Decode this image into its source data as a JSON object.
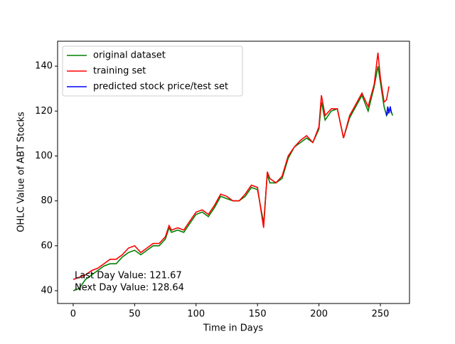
{
  "chart_data": {
    "type": "line",
    "xlabel": "Time in Days",
    "ylabel": "OHLC Value of ABT Stocks",
    "annotations": [
      "Last Day Value: 121.67",
      "Next Day Value: 128.64"
    ],
    "xlim": [
      -12.7,
      273.7
    ],
    "ylim": [
      34.3,
      151.1
    ],
    "xticks": [
      0,
      50,
      100,
      150,
      200,
      250
    ],
    "yticks": [
      40,
      60,
      80,
      100,
      120,
      140
    ],
    "legend": "upper left",
    "series": [
      {
        "name": "original dataset",
        "color": "#008000",
        "x": [
          0,
          5,
          10,
          15,
          20,
          25,
          30,
          35,
          40,
          45,
          50,
          55,
          60,
          65,
          70,
          75,
          78,
          80,
          85,
          90,
          95,
          100,
          105,
          110,
          115,
          120,
          125,
          130,
          135,
          140,
          145,
          150,
          155,
          158,
          160,
          165,
          170,
          175,
          180,
          185,
          190,
          195,
          200,
          202,
          205,
          210,
          215,
          220,
          225,
          230,
          235,
          240,
          245,
          248,
          250,
          253,
          255,
          258,
          260
        ],
        "values": [
          40,
          41,
          45,
          47,
          49,
          51,
          52,
          52,
          55,
          57,
          58,
          56,
          58,
          60,
          60,
          63,
          68,
          66,
          67,
          66,
          70,
          74,
          75,
          73,
          77,
          82,
          81,
          80,
          80,
          82,
          86,
          85,
          70,
          92,
          88,
          88,
          90,
          99,
          104,
          106,
          108,
          106,
          112,
          124,
          116,
          120,
          121,
          108,
          117,
          122,
          127,
          120,
          131,
          140,
          133,
          122,
          118,
          121,
          118
        ]
      },
      {
        "name": "training set",
        "color": "#ff0000",
        "x": [
          0,
          5,
          10,
          15,
          20,
          25,
          30,
          35,
          40,
          45,
          50,
          55,
          60,
          65,
          70,
          75,
          78,
          80,
          85,
          90,
          95,
          100,
          105,
          110,
          115,
          120,
          125,
          130,
          135,
          140,
          145,
          150,
          155,
          158,
          160,
          165,
          170,
          175,
          180,
          185,
          190,
          195,
          200,
          202,
          205,
          210,
          215,
          220,
          225,
          230,
          235,
          240,
          245,
          248,
          250,
          253,
          255,
          257
        ],
        "values": [
          45,
          46,
          47,
          49,
          50,
          52,
          54,
          54,
          56,
          59,
          60,
          57,
          59,
          61,
          61,
          64,
          69,
          67,
          68,
          67,
          71,
          75,
          76,
          74,
          78,
          83,
          82,
          80,
          80,
          83,
          87,
          86,
          68,
          93,
          90,
          88,
          91,
          100,
          104,
          107,
          109,
          106,
          113,
          127,
          118,
          121,
          121,
          108,
          118,
          123,
          128,
          122,
          132,
          146,
          135,
          124,
          125,
          131
        ]
      },
      {
        "name": "predicted stock price/test set",
        "color": "#0000ff",
        "x": [
          255,
          256,
          257,
          258,
          259
        ],
        "values": [
          118,
          122,
          119,
          122,
          119
        ]
      }
    ]
  }
}
